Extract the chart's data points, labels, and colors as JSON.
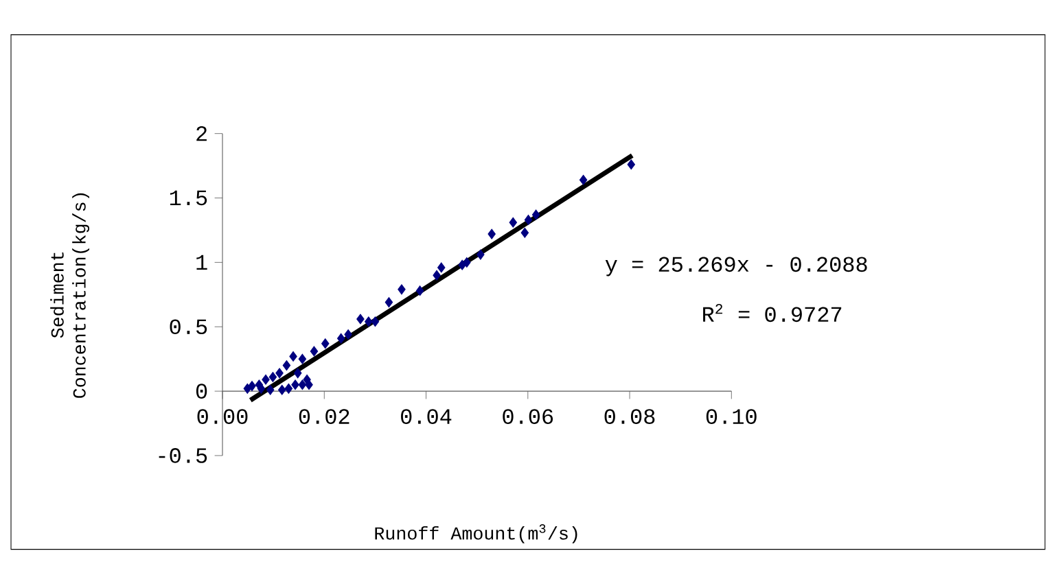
{
  "chart_data": {
    "type": "scatter",
    "xlabel": "Runoff Amount(m$^{3}$/s)",
    "ylabel": "Sediment Concentration(kg/s)",
    "xlim": [
      0,
      0.1
    ],
    "ylim": [
      -0.5,
      2
    ],
    "xticks": [
      {
        "value": 0,
        "label": "0.00"
      },
      {
        "value": 0.02,
        "label": "0.02"
      },
      {
        "value": 0.04,
        "label": "0.04"
      },
      {
        "value": 0.06,
        "label": "0.06"
      },
      {
        "value": 0.08,
        "label": "0.08"
      },
      {
        "value": 0.1,
        "label": "0.10"
      }
    ],
    "yticks": [
      -0.5,
      0,
      0.5,
      1,
      1.5,
      2
    ],
    "grid": false,
    "marker": "diamond",
    "annotations": [
      "y = 25.269x - 0.2088",
      "R$^{2}$ = 0.9727"
    ],
    "series": [
      {
        "color": "#000080",
        "x": [
          0.0803,
          0.0709,
          0.0616,
          0.0601,
          0.0594,
          0.0571,
          0.0529,
          0.0507,
          0.048,
          0.0471,
          0.043,
          0.0421,
          0.0388,
          0.0352,
          0.0327,
          0.03,
          0.0287,
          0.0271,
          0.0247,
          0.0233,
          0.0202,
          0.018,
          0.0157,
          0.0139,
          0.0126,
          0.0112,
          0.0099,
          0.0085,
          0.0072,
          0.0058,
          0.0049,
          0.0143,
          0.0157,
          0.017,
          0.013,
          0.0117,
          0.0166,
          0.0094,
          0.0076,
          0.0148
        ],
        "values": [
          1.76,
          1.64,
          1.37,
          1.33,
          1.23,
          1.31,
          1.22,
          1.06,
          1.0,
          0.98,
          0.96,
          0.9,
          0.78,
          0.79,
          0.69,
          0.54,
          0.54,
          0.56,
          0.44,
          0.41,
          0.37,
          0.31,
          0.25,
          0.27,
          0.2,
          0.14,
          0.11,
          0.09,
          0.05,
          0.04,
          0.02,
          0.05,
          0.05,
          0.05,
          0.02,
          0.01,
          0.09,
          0.01,
          0.02,
          0.14
        ]
      },
      {
        "type": "line",
        "color": "#000000",
        "marker": "none",
        "x": [
          0.0055,
          0.0805
        ],
        "values": [
          -0.07,
          1.83
        ]
      }
    ]
  }
}
